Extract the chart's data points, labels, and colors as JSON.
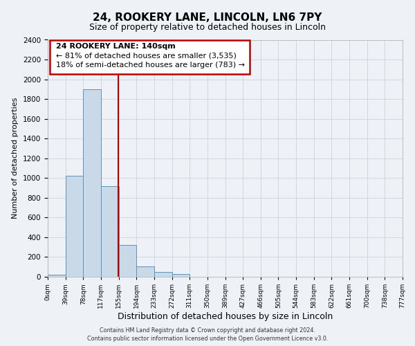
{
  "title": "24, ROOKERY LANE, LINCOLN, LN6 7PY",
  "subtitle": "Size of property relative to detached houses in Lincoln",
  "xlabel": "Distribution of detached houses by size in Lincoln",
  "ylabel": "Number of detached properties",
  "bins": [
    "0sqm",
    "39sqm",
    "78sqm",
    "117sqm",
    "155sqm",
    "194sqm",
    "233sqm",
    "272sqm",
    "311sqm",
    "350sqm",
    "389sqm",
    "427sqm",
    "466sqm",
    "505sqm",
    "544sqm",
    "583sqm",
    "622sqm",
    "661sqm",
    "700sqm",
    "738sqm",
    "777sqm"
  ],
  "bar_heights": [
    20,
    1020,
    1900,
    920,
    320,
    105,
    50,
    30,
    0,
    0,
    0,
    0,
    0,
    0,
    0,
    0,
    0,
    0,
    0,
    0
  ],
  "bar_color": "#c9d9e8",
  "bar_edge_color": "#6090b8",
  "property_line_x": 3.97,
  "annotation_line1": "24 ROOKERY LANE: 140sqm",
  "annotation_line2": "← 81% of detached houses are smaller (3,535)",
  "annotation_line3": "18% of semi-detached houses are larger (783) →",
  "vline_color": "#bb0000",
  "annotation_box_edgecolor": "#bb0000",
  "annotation_box_facecolor": "#ffffff",
  "ylim": [
    0,
    2400
  ],
  "yticks": [
    0,
    200,
    400,
    600,
    800,
    1000,
    1200,
    1400,
    1600,
    1800,
    2000,
    2200,
    2400
  ],
  "footer1": "Contains HM Land Registry data © Crown copyright and database right 2024.",
  "footer2": "Contains public sector information licensed under the Open Government Licence v3.0.",
  "background_color": "#eef2f6",
  "grid_color": "#c5cdd5",
  "title_fontsize": 11,
  "subtitle_fontsize": 9,
  "ylabel_fontsize": 8,
  "xlabel_fontsize": 9
}
